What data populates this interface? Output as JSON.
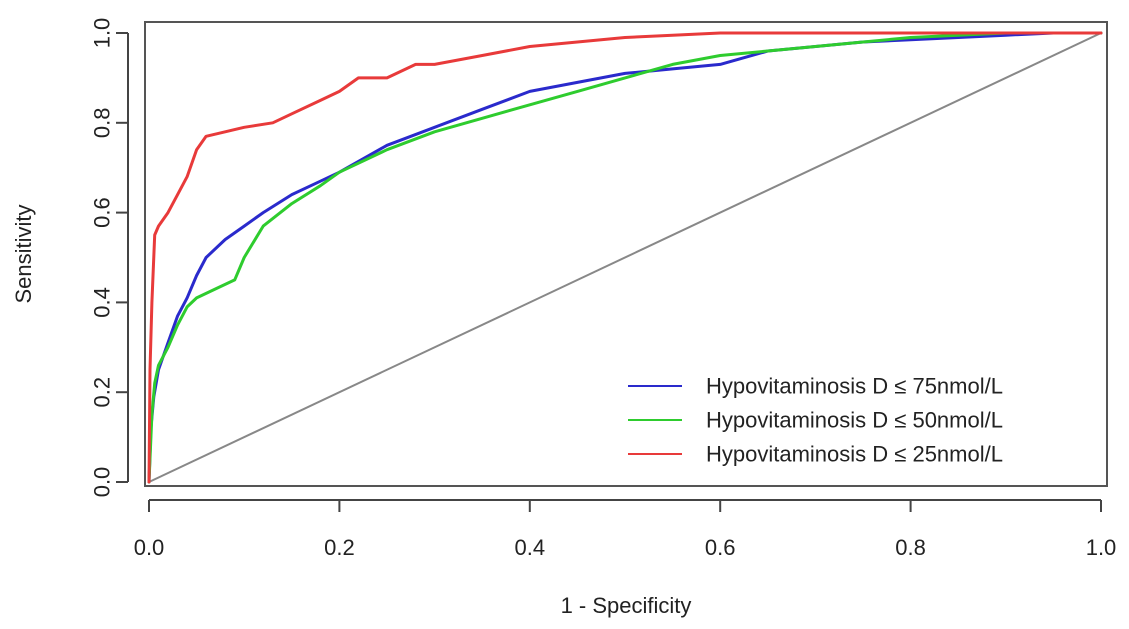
{
  "chart_data": {
    "type": "line",
    "title": "",
    "xlabel": "1 - Specificity",
    "ylabel": "Sensitivity",
    "xlim": [
      0,
      1
    ],
    "ylim": [
      0,
      1
    ],
    "x_ticks": [
      "0.0",
      "0.2",
      "0.4",
      "0.6",
      "0.8",
      "1.0"
    ],
    "y_ticks": [
      "0.0",
      "0.2",
      "0.4",
      "0.6",
      "0.8",
      "1.0"
    ],
    "grid": false,
    "legend_position": "bottom-right",
    "reference_line": {
      "color": "#888888",
      "points": [
        [
          0,
          0
        ],
        [
          1,
          1
        ]
      ]
    },
    "series": [
      {
        "name": "Hypovitaminosis D ≤ 75nmol/L",
        "color": "#2a2acc",
        "points": [
          [
            0,
            0
          ],
          [
            0.002,
            0.12
          ],
          [
            0.005,
            0.19
          ],
          [
            0.01,
            0.25
          ],
          [
            0.02,
            0.31
          ],
          [
            0.03,
            0.37
          ],
          [
            0.04,
            0.41
          ],
          [
            0.05,
            0.46
          ],
          [
            0.06,
            0.5
          ],
          [
            0.08,
            0.54
          ],
          [
            0.1,
            0.57
          ],
          [
            0.12,
            0.6
          ],
          [
            0.15,
            0.64
          ],
          [
            0.18,
            0.67
          ],
          [
            0.2,
            0.69
          ],
          [
            0.25,
            0.75
          ],
          [
            0.3,
            0.79
          ],
          [
            0.35,
            0.83
          ],
          [
            0.4,
            0.87
          ],
          [
            0.45,
            0.89
          ],
          [
            0.5,
            0.91
          ],
          [
            0.55,
            0.92
          ],
          [
            0.6,
            0.93
          ],
          [
            0.65,
            0.96
          ],
          [
            0.7,
            0.97
          ],
          [
            0.75,
            0.98
          ],
          [
            0.8,
            0.985
          ],
          [
            0.85,
            0.99
          ],
          [
            0.9,
            0.995
          ],
          [
            0.95,
            1.0
          ],
          [
            1.0,
            1.0
          ]
        ]
      },
      {
        "name": "Hypovitaminosis D ≤ 50nmol/L",
        "color": "#2ecc2e",
        "points": [
          [
            0,
            0
          ],
          [
            0.003,
            0.15
          ],
          [
            0.006,
            0.22
          ],
          [
            0.01,
            0.26
          ],
          [
            0.02,
            0.3
          ],
          [
            0.03,
            0.35
          ],
          [
            0.04,
            0.39
          ],
          [
            0.05,
            0.41
          ],
          [
            0.07,
            0.43
          ],
          [
            0.09,
            0.45
          ],
          [
            0.1,
            0.5
          ],
          [
            0.12,
            0.57
          ],
          [
            0.15,
            0.62
          ],
          [
            0.18,
            0.66
          ],
          [
            0.2,
            0.69
          ],
          [
            0.25,
            0.74
          ],
          [
            0.3,
            0.78
          ],
          [
            0.35,
            0.81
          ],
          [
            0.4,
            0.84
          ],
          [
            0.45,
            0.87
          ],
          [
            0.5,
            0.9
          ],
          [
            0.55,
            0.93
          ],
          [
            0.6,
            0.95
          ],
          [
            0.65,
            0.96
          ],
          [
            0.7,
            0.97
          ],
          [
            0.75,
            0.98
          ],
          [
            0.8,
            0.99
          ],
          [
            0.85,
            0.995
          ],
          [
            0.9,
            1.0
          ],
          [
            1.0,
            1.0
          ]
        ]
      },
      {
        "name": "Hypovitaminosis D ≤ 25nmol/L",
        "color": "#e83a3a",
        "points": [
          [
            0,
            0
          ],
          [
            0.001,
            0.25
          ],
          [
            0.003,
            0.4
          ],
          [
            0.006,
            0.55
          ],
          [
            0.01,
            0.57
          ],
          [
            0.02,
            0.6
          ],
          [
            0.03,
            0.64
          ],
          [
            0.04,
            0.68
          ],
          [
            0.05,
            0.74
          ],
          [
            0.06,
            0.77
          ],
          [
            0.08,
            0.78
          ],
          [
            0.1,
            0.79
          ],
          [
            0.13,
            0.8
          ],
          [
            0.15,
            0.82
          ],
          [
            0.18,
            0.85
          ],
          [
            0.2,
            0.87
          ],
          [
            0.22,
            0.9
          ],
          [
            0.25,
            0.9
          ],
          [
            0.28,
            0.93
          ],
          [
            0.3,
            0.93
          ],
          [
            0.35,
            0.95
          ],
          [
            0.4,
            0.97
          ],
          [
            0.45,
            0.98
          ],
          [
            0.5,
            0.99
          ],
          [
            0.55,
            0.995
          ],
          [
            0.6,
            1.0
          ],
          [
            0.7,
            1.0
          ],
          [
            0.8,
            1.0
          ],
          [
            1.0,
            1.0
          ]
        ]
      }
    ]
  }
}
